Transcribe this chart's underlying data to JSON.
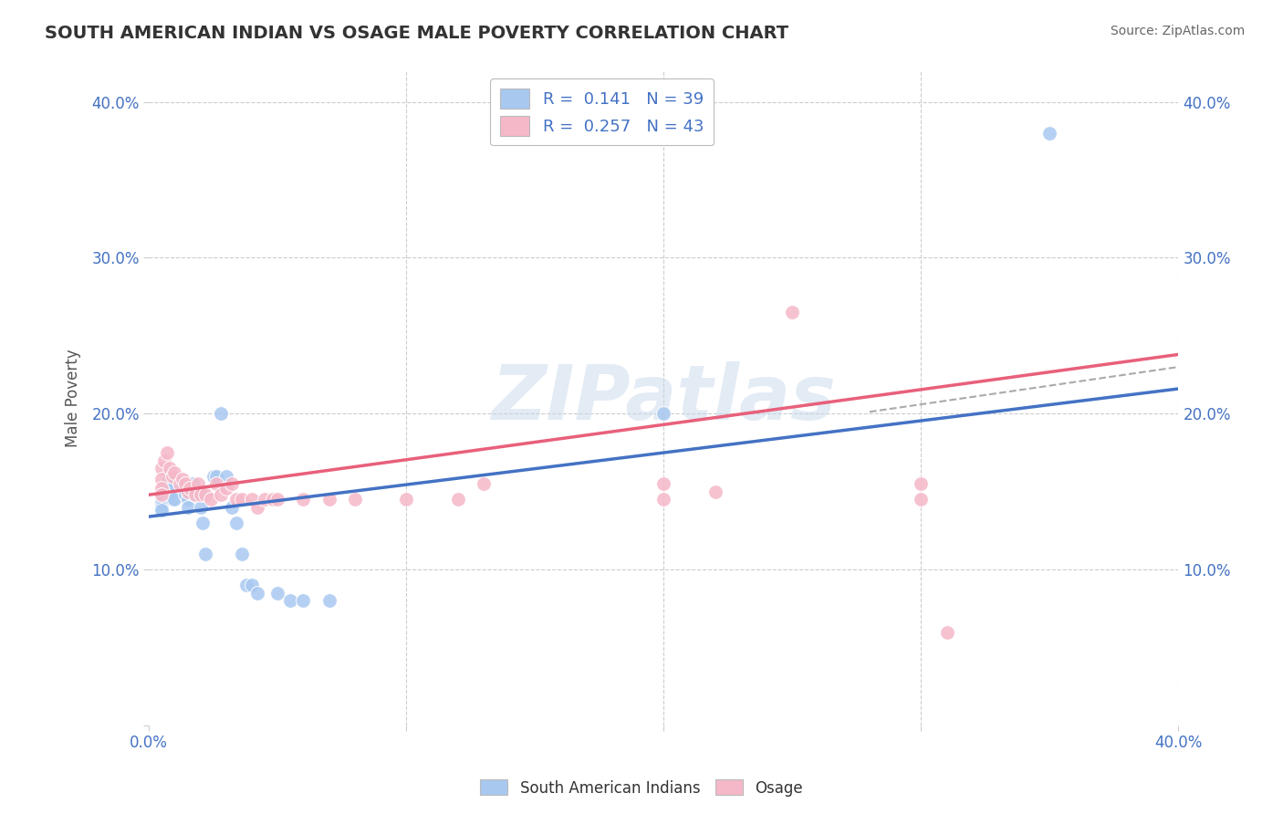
{
  "title": "SOUTH AMERICAN INDIAN VS OSAGE MALE POVERTY CORRELATION CHART",
  "source": "Source: ZipAtlas.com",
  "ylabel": "Male Poverty",
  "xlim": [
    0.0,
    0.4
  ],
  "ylim": [
    0.0,
    0.42
  ],
  "xticks": [
    0.0,
    0.1,
    0.2,
    0.3,
    0.4
  ],
  "yticks": [
    0.0,
    0.1,
    0.2,
    0.3,
    0.4
  ],
  "xtick_labels": [
    "0.0%",
    "",
    "",
    "",
    "40.0%"
  ],
  "ytick_labels_left": [
    "",
    "10.0%",
    "20.0%",
    "30.0%",
    "40.0%"
  ],
  "ytick_labels_right": [
    "",
    "10.0%",
    "20.0%",
    "30.0%",
    "40.0%"
  ],
  "blue_color": "#A8C8F0",
  "pink_color": "#F5B8C8",
  "blue_line_color": "#4472C4",
  "pink_line_color": "#E8607A",
  "dashed_line_color": "#AAAAAA",
  "R_blue": 0.141,
  "N_blue": 39,
  "R_pink": 0.257,
  "N_pink": 43,
  "blue_scatter_x": [
    0.005,
    0.005,
    0.005,
    0.005,
    0.005,
    0.007,
    0.007,
    0.008,
    0.009,
    0.01,
    0.01,
    0.01,
    0.012,
    0.013,
    0.014,
    0.015,
    0.015,
    0.017,
    0.018,
    0.02,
    0.02,
    0.021,
    0.022,
    0.025,
    0.026,
    0.028,
    0.03,
    0.032,
    0.034,
    0.036,
    0.038,
    0.04,
    0.042,
    0.05,
    0.055,
    0.06,
    0.07,
    0.2,
    0.35
  ],
  "blue_scatter_y": [
    0.15,
    0.148,
    0.143,
    0.14,
    0.138,
    0.155,
    0.152,
    0.148,
    0.145,
    0.16,
    0.155,
    0.145,
    0.155,
    0.155,
    0.148,
    0.145,
    0.14,
    0.155,
    0.148,
    0.148,
    0.14,
    0.13,
    0.11,
    0.16,
    0.16,
    0.2,
    0.16,
    0.14,
    0.13,
    0.11,
    0.09,
    0.09,
    0.085,
    0.085,
    0.08,
    0.08,
    0.08,
    0.2,
    0.38
  ],
  "pink_scatter_x": [
    0.005,
    0.005,
    0.005,
    0.005,
    0.006,
    0.007,
    0.008,
    0.009,
    0.01,
    0.012,
    0.013,
    0.014,
    0.015,
    0.016,
    0.018,
    0.019,
    0.02,
    0.022,
    0.024,
    0.026,
    0.028,
    0.03,
    0.032,
    0.034,
    0.036,
    0.04,
    0.042,
    0.045,
    0.048,
    0.05,
    0.06,
    0.07,
    0.08,
    0.1,
    0.12,
    0.13,
    0.2,
    0.2,
    0.22,
    0.25,
    0.3,
    0.3,
    0.31
  ],
  "pink_scatter_y": [
    0.165,
    0.158,
    0.152,
    0.148,
    0.17,
    0.175,
    0.165,
    0.16,
    0.162,
    0.155,
    0.158,
    0.155,
    0.15,
    0.152,
    0.148,
    0.155,
    0.148,
    0.148,
    0.145,
    0.155,
    0.148,
    0.152,
    0.155,
    0.145,
    0.145,
    0.145,
    0.14,
    0.145,
    0.145,
    0.145,
    0.145,
    0.145,
    0.145,
    0.145,
    0.145,
    0.155,
    0.155,
    0.145,
    0.15,
    0.265,
    0.155,
    0.145,
    0.06
  ],
  "watermark": "ZIPatlas",
  "background_color": "#FFFFFF",
  "grid_color": "#CCCCCC",
  "title_color": "#333333",
  "source_color": "#666666",
  "tick_color": "#4472C4"
}
